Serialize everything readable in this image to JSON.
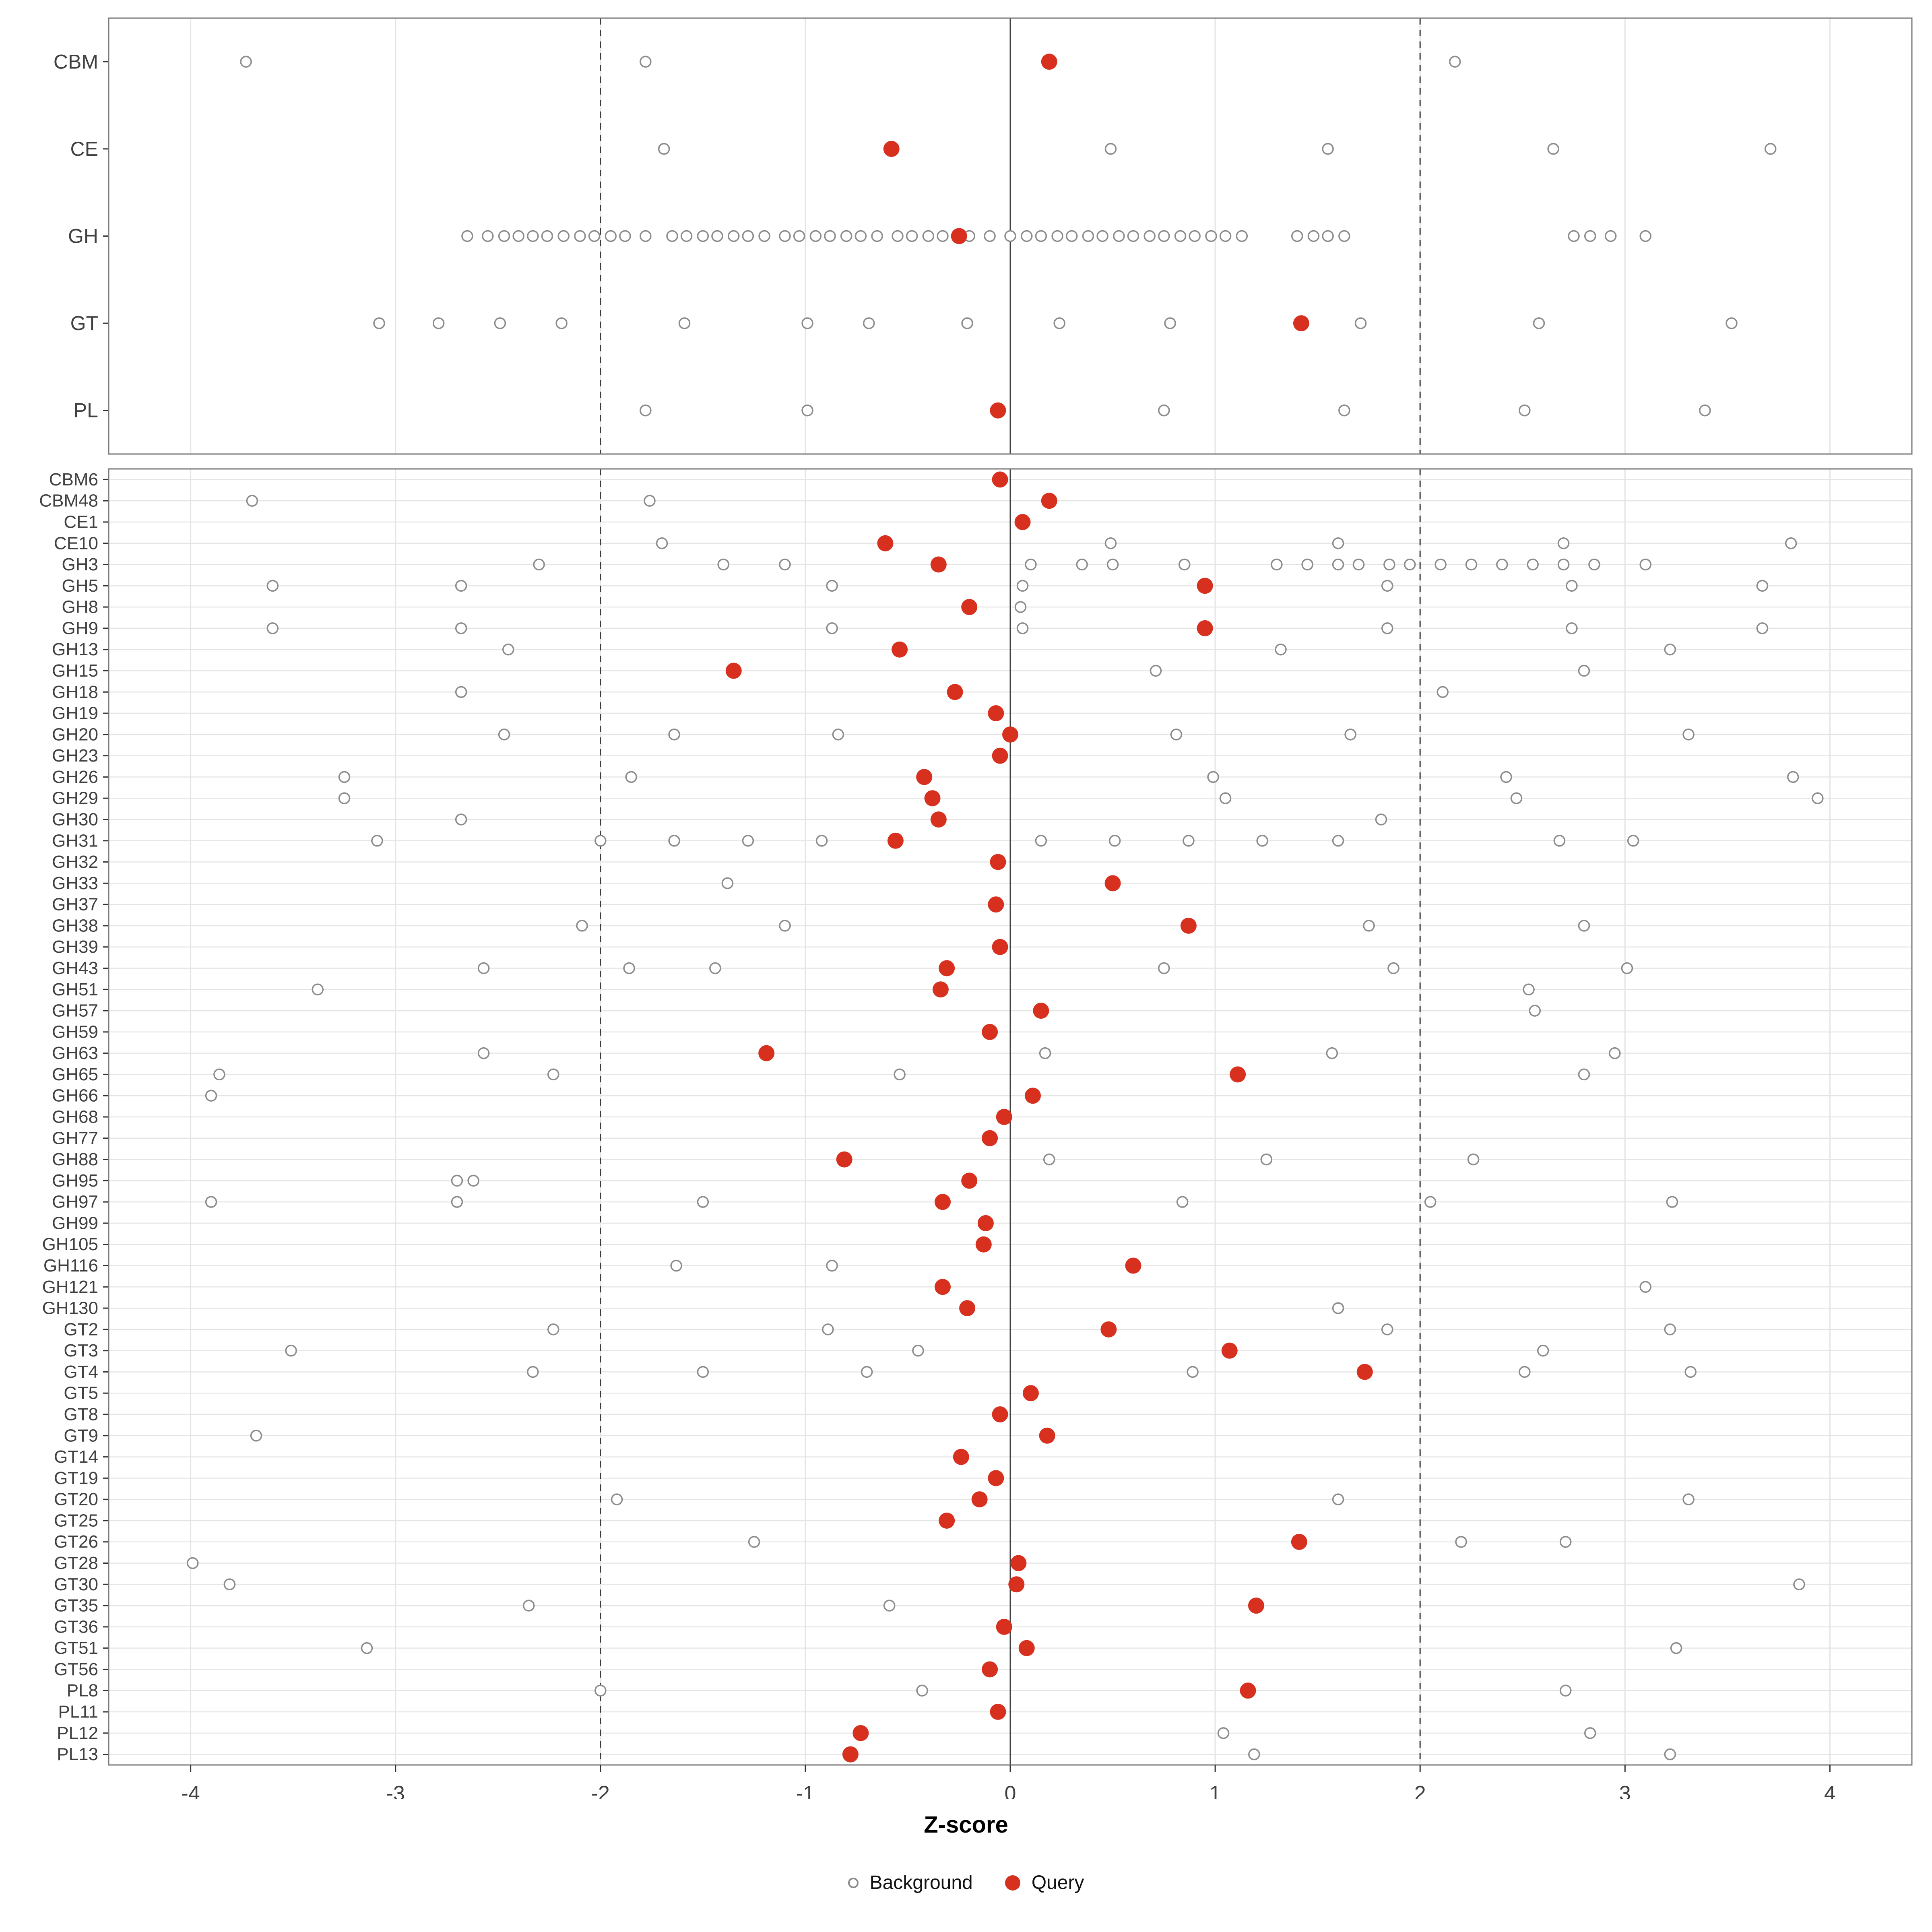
{
  "chart_data": {
    "type": "scatter",
    "title": "",
    "xlabel": "Z-score",
    "x_ticks": [
      -4,
      -3,
      -2,
      -1,
      0,
      1,
      2,
      3,
      4
    ],
    "x_domain": [
      -4.4,
      4.4
    ],
    "grid": true,
    "legend_position": "bottom",
    "reference_lines": {
      "solid": [
        0
      ],
      "dashed": [
        -2,
        2
      ]
    },
    "legend": {
      "background_label": "Background",
      "query_label": "Query"
    },
    "colors": {
      "query_fill": "#d7301f",
      "background_stroke": "#8c8c8c",
      "grid": "#e4e4e4",
      "ref_line": "#3c3c3c",
      "panel_border": "#7a7a7a",
      "axis_text": "#404040",
      "tick_mark": "#333333"
    },
    "panels": [
      {
        "id": "class-summary",
        "rows": [
          {
            "label": "CBM",
            "background": [
              -3.73,
              -1.78,
              2.17
            ],
            "query": 0.19
          },
          {
            "label": "CE",
            "background": [
              -1.69,
              0.49,
              1.55,
              2.65,
              3.71
            ],
            "query": -0.58
          },
          {
            "label": "GH",
            "background": [
              -2.65,
              -2.55,
              -2.47,
              -2.4,
              -2.33,
              -2.26,
              -2.18,
              -2.1,
              -2.03,
              -1.95,
              -1.88,
              -1.78,
              -1.65,
              -1.58,
              -1.5,
              -1.43,
              -1.35,
              -1.28,
              -1.2,
              -1.1,
              -1.03,
              -0.95,
              -0.88,
              -0.8,
              -0.73,
              -0.65,
              -0.55,
              -0.48,
              -0.4,
              -0.33,
              -0.2,
              -0.1,
              0.0,
              0.08,
              0.15,
              0.23,
              0.3,
              0.38,
              0.45,
              0.53,
              0.6,
              0.68,
              0.75,
              0.83,
              0.9,
              0.98,
              1.05,
              1.13,
              1.4,
              1.48,
              1.55,
              1.63,
              2.75,
              2.83,
              2.93,
              3.1
            ],
            "query": -0.25
          },
          {
            "label": "GT",
            "background": [
              -3.08,
              -2.79,
              -2.49,
              -2.19,
              -1.59,
              -0.99,
              -0.69,
              -0.21,
              0.24,
              0.78,
              1.71,
              2.58,
              3.52
            ],
            "query": 1.42
          },
          {
            "label": "PL",
            "background": [
              -1.78,
              -0.99,
              0.75,
              1.63,
              2.51,
              3.39
            ],
            "query": -0.06
          }
        ]
      },
      {
        "id": "family-detail",
        "rows": [
          {
            "label": "CBM6",
            "background": [],
            "query": -0.05
          },
          {
            "label": "CBM48",
            "background": [
              -3.7,
              -1.76
            ],
            "query": 0.19
          },
          {
            "label": "CE1",
            "background": [],
            "query": 0.06
          },
          {
            "label": "CE10",
            "background": [
              -1.7,
              0.49,
              1.6,
              2.7,
              3.81
            ],
            "query": -0.61
          },
          {
            "label": "GH3",
            "background": [
              -2.3,
              -1.4,
              -1.1,
              0.1,
              0.35,
              0.5,
              0.85,
              1.3,
              1.45,
              1.6,
              1.7,
              1.85,
              1.95,
              2.1,
              2.25,
              2.4,
              2.55,
              2.7,
              2.85,
              3.1
            ],
            "query": -0.35
          },
          {
            "label": "GH5",
            "background": [
              -3.6,
              -2.68,
              -0.87,
              0.06,
              1.84,
              2.74,
              3.67
            ],
            "query": 0.95
          },
          {
            "label": "GH8",
            "background": [
              0.05
            ],
            "query": -0.2
          },
          {
            "label": "GH9",
            "background": [
              -3.6,
              -2.68,
              -0.87,
              0.06,
              1.84,
              2.74,
              3.67
            ],
            "query": 0.95
          },
          {
            "label": "GH13",
            "background": [
              -2.45,
              1.32,
              3.22
            ],
            "query": -0.54
          },
          {
            "label": "GH15",
            "background": [
              0.71,
              2.8
            ],
            "query": -1.35
          },
          {
            "label": "GH18",
            "background": [
              -2.68,
              2.11
            ],
            "query": -0.27
          },
          {
            "label": "GH19",
            "background": [],
            "query": -0.07
          },
          {
            "label": "GH20",
            "background": [
              -2.47,
              -1.64,
              -0.84,
              0.81,
              1.66,
              3.31
            ],
            "query": 0.0
          },
          {
            "label": "GH23",
            "background": [],
            "query": -0.05
          },
          {
            "label": "GH26",
            "background": [
              -3.25,
              -1.85,
              0.99,
              2.42,
              3.82
            ],
            "query": -0.42
          },
          {
            "label": "GH29",
            "background": [
              -3.25,
              1.05,
              2.47,
              3.94
            ],
            "query": -0.38
          },
          {
            "label": "GH30",
            "background": [
              -2.68,
              1.81
            ],
            "query": -0.35
          },
          {
            "label": "GH31",
            "background": [
              -3.09,
              -2.0,
              -1.64,
              -1.28,
              -0.92,
              0.15,
              0.51,
              0.87,
              1.23,
              1.6,
              2.68,
              3.04
            ],
            "query": -0.56
          },
          {
            "label": "GH32",
            "background": [],
            "query": -0.06
          },
          {
            "label": "GH33",
            "background": [
              -1.38
            ],
            "query": 0.5
          },
          {
            "label": "GH37",
            "background": [],
            "query": -0.07
          },
          {
            "label": "GH38",
            "background": [
              -2.09,
              -1.1,
              1.75,
              2.8
            ],
            "query": 0.87
          },
          {
            "label": "GH39",
            "background": [],
            "query": -0.05
          },
          {
            "label": "GH43",
            "background": [
              -2.57,
              -1.86,
              -1.44,
              0.75,
              1.87,
              3.01
            ],
            "query": -0.31
          },
          {
            "label": "GH51",
            "background": [
              -3.38,
              2.53
            ],
            "query": -0.34
          },
          {
            "label": "GH57",
            "background": [
              2.56
            ],
            "query": 0.15
          },
          {
            "label": "GH59",
            "background": [],
            "query": -0.1
          },
          {
            "label": "GH63",
            "background": [
              -2.57,
              0.17,
              1.57,
              2.95
            ],
            "query": -1.19
          },
          {
            "label": "GH65",
            "background": [
              -3.86,
              -2.23,
              -0.54,
              2.8
            ],
            "query": 1.11
          },
          {
            "label": "GH66",
            "background": [
              -3.9
            ],
            "query": 0.11
          },
          {
            "label": "GH68",
            "background": [],
            "query": -0.03
          },
          {
            "label": "GH77",
            "background": [],
            "query": -0.1
          },
          {
            "label": "GH88",
            "background": [
              0.19,
              1.25,
              2.26
            ],
            "query": -0.81
          },
          {
            "label": "GH95",
            "background": [
              -2.7,
              -2.62
            ],
            "query": -0.2
          },
          {
            "label": "GH97",
            "background": [
              -3.9,
              -2.7,
              -1.5,
              0.84,
              2.05,
              3.23
            ],
            "query": -0.33
          },
          {
            "label": "GH99",
            "background": [],
            "query": -0.12
          },
          {
            "label": "GH105",
            "background": [],
            "query": -0.13
          },
          {
            "label": "GH116",
            "background": [
              -1.63,
              -0.87
            ],
            "query": 0.6
          },
          {
            "label": "GH121",
            "background": [
              3.1
            ],
            "query": -0.33
          },
          {
            "label": "GH130",
            "background": [
              1.6
            ],
            "query": -0.21
          },
          {
            "label": "GT2",
            "background": [
              -2.23,
              -0.89,
              1.84,
              3.22
            ],
            "query": 0.48
          },
          {
            "label": "GT3",
            "background": [
              -3.51,
              -0.45,
              2.6
            ],
            "query": 1.07
          },
          {
            "label": "GT4",
            "background": [
              -2.33,
              -1.5,
              -0.7,
              0.89,
              2.51,
              3.32
            ],
            "query": 1.73
          },
          {
            "label": "GT5",
            "background": [],
            "query": 0.1
          },
          {
            "label": "GT8",
            "background": [],
            "query": -0.05
          },
          {
            "label": "GT9",
            "background": [
              -3.68
            ],
            "query": 0.18
          },
          {
            "label": "GT14",
            "background": [],
            "query": -0.24
          },
          {
            "label": "GT19",
            "background": [],
            "query": -0.07
          },
          {
            "label": "GT20",
            "background": [
              -1.92,
              1.6,
              3.31
            ],
            "query": -0.15
          },
          {
            "label": "GT25",
            "background": [],
            "query": -0.31
          },
          {
            "label": "GT26",
            "background": [
              -1.25,
              2.2,
              2.71
            ],
            "query": 1.41
          },
          {
            "label": "GT28",
            "background": [
              -3.99
            ],
            "query": 0.04
          },
          {
            "label": "GT30",
            "background": [
              -3.81,
              3.85
            ],
            "query": 0.03
          },
          {
            "label": "GT35",
            "background": [
              -2.35,
              -0.59
            ],
            "query": 1.2
          },
          {
            "label": "GT36",
            "background": [],
            "query": -0.03
          },
          {
            "label": "GT51",
            "background": [
              -3.14,
              3.25
            ],
            "query": 0.08
          },
          {
            "label": "GT56",
            "background": [],
            "query": -0.1
          },
          {
            "label": "PL8",
            "background": [
              -2.0,
              -0.43,
              2.71
            ],
            "query": 1.16
          },
          {
            "label": "PL11",
            "background": [],
            "query": -0.06
          },
          {
            "label": "PL12",
            "background": [
              1.04,
              2.83
            ],
            "query": -0.73
          },
          {
            "label": "PL13",
            "background": [
              1.19,
              3.22
            ],
            "query": -0.78
          }
        ]
      }
    ]
  }
}
